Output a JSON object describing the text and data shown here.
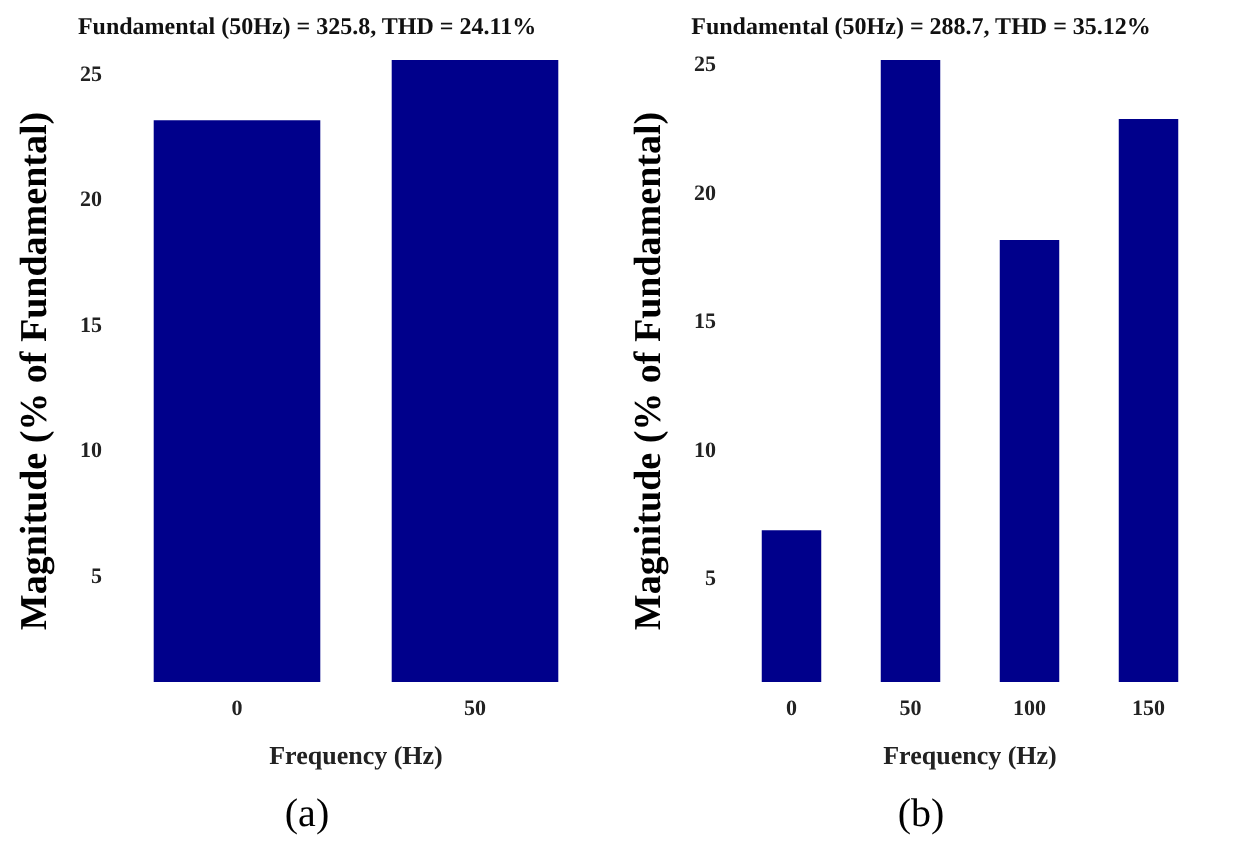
{
  "chart_data": [
    {
      "type": "bar",
      "title": "Fundamental (50Hz) = 325.8, THD = 24.11%",
      "xlabel": "Frequency (Hz)",
      "ylabel": "Magnitude (% of Fundamental)",
      "categories": [
        "0",
        "50"
      ],
      "values": [
        23.2,
        25.6
      ],
      "color": "#00008b",
      "ylim": [
        0.8,
        25.6
      ],
      "yticks": [
        5,
        10,
        15,
        20,
        25
      ],
      "grid": false,
      "annotations": [
        "(a)"
      ]
    },
    {
      "type": "bar",
      "title": "Fundamental (50Hz) = 288.7, THD = 35.12%",
      "xlabel": "Frequency (Hz)",
      "ylabel": "Magnitude (% of Fundamental)",
      "categories": [
        "0",
        "50",
        "100",
        "150"
      ],
      "values": [
        6.9,
        25.2,
        18.2,
        22.9
      ],
      "color": "#00008b",
      "ylim": [
        1,
        25.2
      ],
      "yticks": [
        5,
        10,
        15,
        20,
        25
      ],
      "grid": false,
      "annotations": [
        "(b)"
      ]
    }
  ]
}
